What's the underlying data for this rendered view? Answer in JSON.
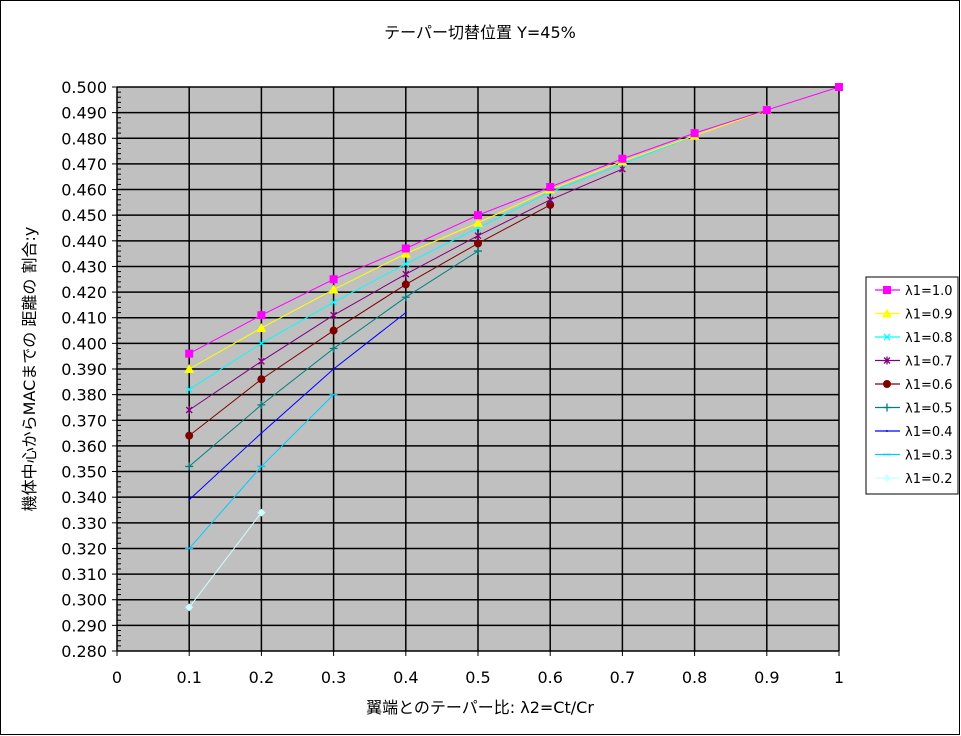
{
  "chart_data": {
    "type": "line",
    "title": "テーパー切替位置 Y=45%",
    "xlabel": "翼端とのテーパー比: λ2=Ct/Cr",
    "ylabel": "機体中心からMACまでの 距離の 割合:y",
    "xlim": [
      0,
      1
    ],
    "ylim": [
      0.28,
      0.5
    ],
    "xticks": [
      "0",
      "0.1",
      "0.2",
      "0.3",
      "0.4",
      "0.5",
      "0.6",
      "0.7",
      "0.8",
      "0.9",
      "1"
    ],
    "yticks": [
      "0.280",
      "0.290",
      "0.300",
      "0.310",
      "0.320",
      "0.330",
      "0.340",
      "0.350",
      "0.360",
      "0.370",
      "0.380",
      "0.390",
      "0.400",
      "0.410",
      "0.420",
      "0.430",
      "0.440",
      "0.450",
      "0.460",
      "0.470",
      "0.480",
      "0.490",
      "0.500"
    ],
    "grid": true,
    "plot_background": "#c0c0c0",
    "legend_placement": "right",
    "series": [
      {
        "name": "λ1=1.0",
        "color": "#ff00ff",
        "marker": "square",
        "x": [
          0.1,
          0.2,
          0.3,
          0.4,
          0.5,
          0.6,
          0.7,
          0.8,
          0.9,
          1.0
        ],
        "y": [
          0.396,
          0.411,
          0.425,
          0.437,
          0.45,
          0.461,
          0.472,
          0.482,
          0.491,
          0.5
        ]
      },
      {
        "name": "λ1=0.9",
        "color": "#ffff00",
        "marker": "triangle",
        "x": [
          0.1,
          0.2,
          0.3,
          0.4,
          0.5,
          0.6,
          0.7,
          0.8,
          0.9
        ],
        "y": [
          0.39,
          0.406,
          0.421,
          0.435,
          0.447,
          0.46,
          0.471,
          0.481,
          0.491
        ]
      },
      {
        "name": "λ1=0.8",
        "color": "#00ffff",
        "marker": "x",
        "x": [
          0.1,
          0.2,
          0.3,
          0.4,
          0.5,
          0.6,
          0.7,
          0.8
        ],
        "y": [
          0.382,
          0.4,
          0.416,
          0.431,
          0.445,
          0.459,
          0.47,
          0.481
        ]
      },
      {
        "name": "λ1=0.7",
        "color": "#800080",
        "marker": "star",
        "x": [
          0.1,
          0.2,
          0.3,
          0.4,
          0.5,
          0.6,
          0.7
        ],
        "y": [
          0.374,
          0.393,
          0.411,
          0.427,
          0.442,
          0.456,
          0.468
        ]
      },
      {
        "name": "λ1=0.6",
        "color": "#800000",
        "marker": "circle",
        "x": [
          0.1,
          0.2,
          0.3,
          0.4,
          0.5,
          0.6
        ],
        "y": [
          0.364,
          0.386,
          0.405,
          0.423,
          0.439,
          0.454
        ]
      },
      {
        "name": "λ1=0.5",
        "color": "#008080",
        "marker": "plus",
        "x": [
          0.1,
          0.2,
          0.3,
          0.4,
          0.5
        ],
        "y": [
          0.352,
          0.376,
          0.398,
          0.418,
          0.436
        ]
      },
      {
        "name": "λ1=0.4",
        "color": "#0000ff",
        "marker": "none",
        "x": [
          0.1,
          0.2,
          0.3,
          0.4
        ],
        "y": [
          0.339,
          0.365,
          0.39,
          0.412
        ]
      },
      {
        "name": "λ1=0.3",
        "color": "#00ccff",
        "marker": "dash",
        "x": [
          0.1,
          0.2,
          0.3
        ],
        "y": [
          0.32,
          0.352,
          0.38
        ]
      },
      {
        "name": "λ1=0.2",
        "color": "#ccffff",
        "marker": "diamond",
        "x": [
          0.1,
          0.2
        ],
        "y": [
          0.297,
          0.334
        ]
      }
    ]
  }
}
